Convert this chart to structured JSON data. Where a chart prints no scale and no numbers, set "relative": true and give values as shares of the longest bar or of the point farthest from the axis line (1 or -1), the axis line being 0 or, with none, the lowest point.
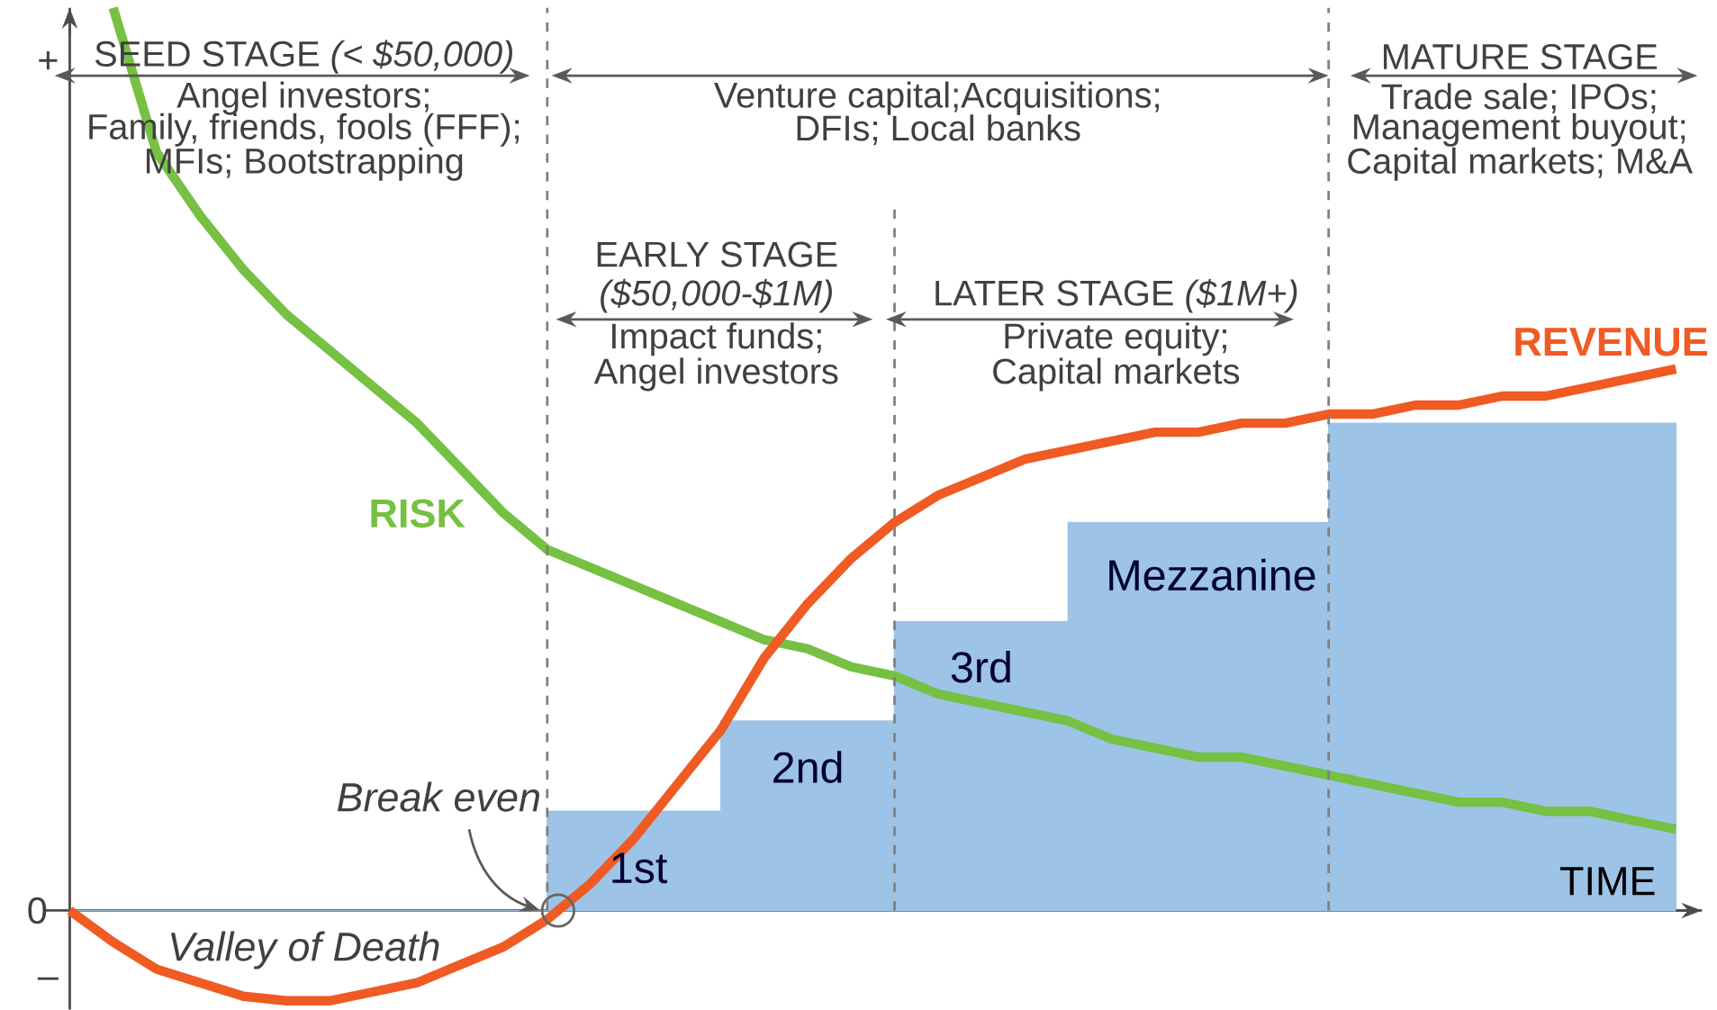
{
  "chart_data": {
    "type": "line",
    "relative": true,
    "xlabel": "TIME",
    "categories": [
      null,
      null,
      null,
      null,
      null,
      null,
      null,
      null,
      null,
      null,
      null,
      null,
      null,
      null,
      null,
      null,
      null,
      null,
      null,
      null,
      null,
      null,
      null,
      null,
      null,
      null,
      null,
      null,
      null,
      null,
      null,
      null,
      null,
      null,
      null,
      null,
      null,
      null
    ],
    "series": [
      {
        "name": "RISK",
        "color": "#76c043",
        "values": [
          null,
          1.0,
          0.84,
          0.77,
          0.71,
          0.66,
          0.62,
          0.58,
          0.54,
          0.49,
          0.44,
          0.4,
          0.38,
          0.36,
          0.34,
          0.32,
          0.3,
          0.29,
          0.27,
          0.26,
          0.24,
          0.23,
          0.22,
          0.21,
          0.19,
          0.18,
          0.17,
          0.17,
          0.16,
          0.15,
          0.14,
          0.13,
          0.12,
          0.12,
          0.11,
          0.11,
          0.1,
          0.09
        ]
      },
      {
        "name": "REVENUE",
        "color": "#f05a23",
        "values": [
          0,
          -0.035,
          -0.065,
          -0.08,
          -0.095,
          -0.1,
          -0.1,
          -0.09,
          -0.08,
          -0.06,
          -0.04,
          -0.01,
          0.03,
          0.08,
          0.14,
          0.2,
          0.28,
          0.34,
          0.39,
          0.43,
          0.46,
          0.48,
          0.5,
          0.51,
          0.52,
          0.53,
          0.53,
          0.54,
          0.54,
          0.55,
          0.55,
          0.56,
          0.56,
          0.57,
          0.57,
          0.58,
          0.59,
          0.6
        ]
      },
      {
        "type": "area",
        "color": "#9dc3e6",
        "values": [
          0,
          0,
          0,
          0,
          0,
          0,
          0,
          0,
          0,
          0,
          0,
          0.11,
          0.11,
          0.11,
          0.11,
          0.21,
          0.21,
          0.21,
          0.21,
          0.32,
          0.32,
          0.32,
          0.32,
          0.43,
          0.43,
          0.43,
          0.43,
          0.43,
          0.43,
          0.54,
          0.54,
          0.54,
          0.54,
          0.54,
          0.54,
          0.54,
          0.54,
          0.54
        ]
      }
    ],
    "annotations": [
      "SEED STAGE *(< $50,000)*",
      "Angel investors;",
      "Family, friends, fools (FFF);",
      "MFIs; Bootstrapping",
      "Venture capital;Acquisitions;",
      "DFIs; Local banks",
      "MATURE STAGE",
      "Trade sale; IPOs;",
      "Management buyout;",
      "Capital markets; M&A",
      "EARLY STAGE",
      "*($50,000-$1M)*",
      "Impact funds;",
      "Angel investors",
      "LATER STAGE *($1M+)*",
      "Private equity;",
      "Capital markets",
      "1st",
      "2nd",
      "3rd",
      "Mezzanine",
      "*Break even*",
      "*Valley of Death*",
      "+",
      "0",
      "–"
    ],
    "grid": "x",
    "marker": "none",
    "line_style": "solid"
  }
}
